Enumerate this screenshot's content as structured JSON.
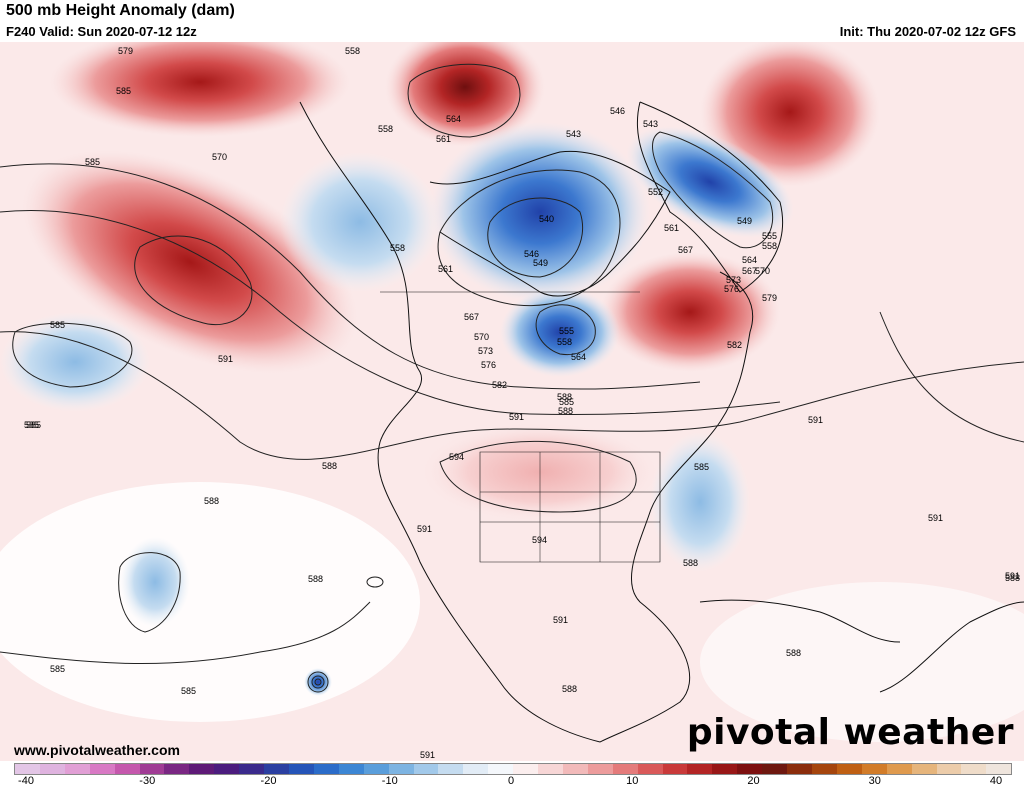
{
  "header": {
    "title": "500 mb Height Anomaly (dam)",
    "valid": "F240 Valid: Sun 2020-07-12 12z",
    "init": "Init: Thu 2020-07-02 12z GFS"
  },
  "footer": {
    "website": "www.pivotalweather.com",
    "brand": "pivotal weather"
  },
  "colorbar": {
    "ticks": [
      "-40",
      "-30",
      "-20",
      "-10",
      "0",
      "10",
      "20",
      "30",
      "40"
    ],
    "colors": [
      "#e3c6e6",
      "#dfb3df",
      "#e19fd5",
      "#d879c4",
      "#c558ad",
      "#a03c95",
      "#7a2783",
      "#5e1a77",
      "#4b1c7e",
      "#3a2a8c",
      "#2b3fa1",
      "#2554b8",
      "#2b6cc9",
      "#3c86d4",
      "#5a9edb",
      "#7db4e2",
      "#a2c9ea",
      "#c5dcf0",
      "#e2ecf6",
      "#f4f7fb",
      "#fbeeee",
      "#f7d6d6",
      "#f2baba",
      "#ec9c9c",
      "#e47b7b",
      "#d95959",
      "#c93a3a",
      "#b32525",
      "#981717",
      "#7d1010",
      "#6e1810",
      "#8b2d0c",
      "#a5450d",
      "#bf5f13",
      "#d27c29",
      "#df9a4e",
      "#e6b57c",
      "#ecccaa",
      "#efdcc9",
      "#efe5dd"
    ]
  },
  "map": {
    "contour_labels": [
      {
        "text": "579",
        "cls": "l1"
      },
      {
        "text": "558",
        "cls": "l2"
      },
      {
        "text": "558",
        "cls": "l3"
      },
      {
        "text": "561",
        "cls": "l4"
      },
      {
        "text": "564",
        "cls": "l5"
      },
      {
        "text": "543",
        "cls": "l6"
      },
      {
        "text": "546",
        "cls": "l7"
      },
      {
        "text": "543",
        "cls": "l8"
      },
      {
        "text": "552",
        "cls": "l9"
      },
      {
        "text": "549",
        "cls": "l10"
      },
      {
        "text": "540",
        "cls": "l11"
      },
      {
        "text": "546",
        "cls": "l12"
      },
      {
        "text": "549",
        "cls": "l13"
      },
      {
        "text": "555",
        "cls": "l14"
      },
      {
        "text": "558",
        "cls": "l15"
      },
      {
        "text": "564",
        "cls": "l16"
      },
      {
        "text": "567",
        "cls": "l17"
      },
      {
        "text": "570",
        "cls": "l18"
      },
      {
        "text": "573",
        "cls": "l19"
      },
      {
        "text": "576",
        "cls": "l20"
      },
      {
        "text": "582",
        "cls": "l21"
      },
      {
        "text": "585",
        "cls": "l22"
      },
      {
        "text": "588",
        "cls": "l23"
      },
      {
        "text": "591",
        "cls": "l24"
      },
      {
        "text": "594",
        "cls": "l25"
      },
      {
        "text": "594",
        "cls": "l26"
      },
      {
        "text": "591",
        "cls": "l27"
      },
      {
        "text": "585",
        "cls": "l28"
      },
      {
        "text": "588",
        "cls": "l29"
      },
      {
        "text": "585",
        "cls": "l30"
      },
      {
        "text": "570",
        "cls": "l31"
      },
      {
        "text": "591",
        "cls": "l32"
      },
      {
        "text": "585",
        "cls": "l33"
      },
      {
        "text": "585",
        "cls": "l34"
      },
      {
        "text": "588",
        "cls": "l35"
      },
      {
        "text": "588",
        "cls": "l36"
      },
      {
        "text": "588",
        "cls": "l37"
      },
      {
        "text": "585",
        "cls": "l38"
      },
      {
        "text": "585",
        "cls": "l39"
      },
      {
        "text": "591",
        "cls": "l40"
      },
      {
        "text": "588",
        "cls": "l41"
      },
      {
        "text": "591",
        "cls": "l42"
      },
      {
        "text": "591",
        "cls": "l43"
      },
      {
        "text": "579",
        "cls": "l44"
      },
      {
        "text": "582",
        "cls": "l45"
      },
      {
        "text": "561",
        "cls": "l46"
      },
      {
        "text": "567",
        "cls": "l47"
      },
      {
        "text": "564",
        "cls": "l48"
      },
      {
        "text": "555",
        "cls": "l49"
      },
      {
        "text": "558",
        "cls": "l50"
      },
      {
        "text": "588",
        "cls": "l51"
      },
      {
        "text": "588",
        "cls": "l52"
      },
      {
        "text": "591",
        "cls": "l53"
      },
      {
        "text": "585",
        "cls": "l54"
      },
      {
        "text": "585",
        "cls": "l55"
      },
      {
        "text": "558",
        "cls": "l56"
      },
      {
        "text": "561",
        "cls": "l57"
      },
      {
        "text": "567",
        "cls": "l58"
      },
      {
        "text": "570",
        "cls": "l59"
      },
      {
        "text": "573",
        "cls": "l60"
      },
      {
        "text": "576",
        "cls": "l61"
      },
      {
        "text": "588",
        "cls": "l62"
      },
      {
        "text": "591",
        "cls": "l63"
      }
    ]
  }
}
